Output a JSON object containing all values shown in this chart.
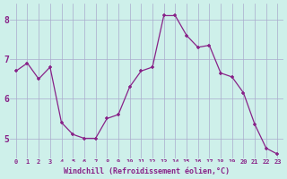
{
  "x": [
    0,
    1,
    2,
    3,
    4,
    5,
    6,
    7,
    8,
    9,
    10,
    11,
    12,
    13,
    14,
    15,
    16,
    17,
    18,
    19,
    20,
    21,
    22,
    23
  ],
  "y": [
    6.7,
    6.9,
    6.5,
    6.8,
    5.4,
    5.1,
    5.0,
    5.0,
    5.5,
    5.6,
    6.3,
    6.7,
    6.8,
    8.1,
    8.1,
    7.6,
    7.3,
    7.35,
    6.65,
    6.55,
    6.15,
    5.35,
    4.75,
    4.6
  ],
  "xlabel": "Windchill (Refroidissement éolien,°C)",
  "background_color": "#cef0ea",
  "plot_bg_color": "#cef0ea",
  "line_color": "#882288",
  "marker_color": "#882288",
  "grid_color": "#aaaacc",
  "tick_color": "#882288",
  "xlabel_color": "#882288",
  "ylim": [
    4.5,
    8.4
  ],
  "xlim": [
    -0.5,
    23.5
  ],
  "yticks": [
    5,
    6,
    7,
    8
  ],
  "xticks": [
    0,
    1,
    2,
    3,
    4,
    5,
    6,
    7,
    8,
    9,
    10,
    11,
    12,
    13,
    14,
    15,
    16,
    17,
    18,
    19,
    20,
    21,
    22,
    23
  ]
}
